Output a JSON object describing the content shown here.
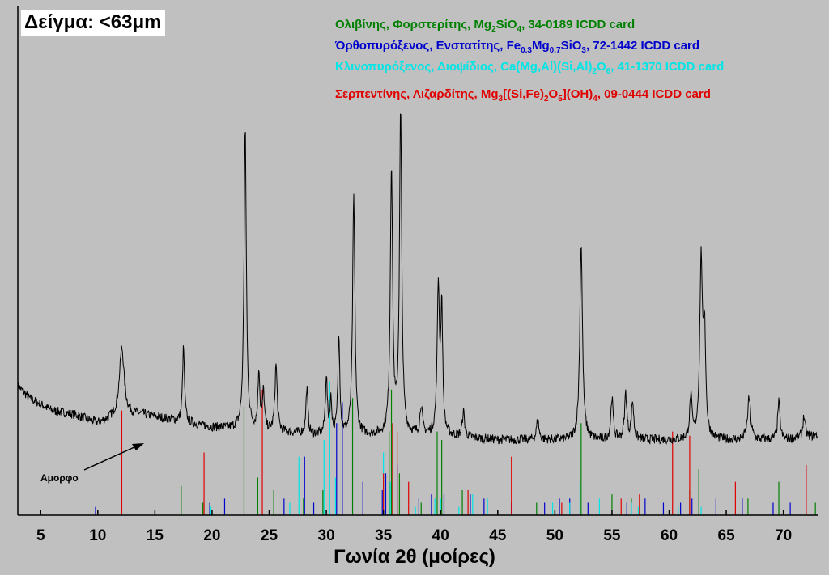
{
  "sample_label": "Δείγμα: <63μm",
  "legend": [
    {
      "color": "#008000",
      "name": "Ολιβίνης, Φορστερίτης, ",
      "formula": [
        "Mg",
        "2",
        "SiO",
        "4"
      ],
      "card": ", 34-0189 ICDD card"
    },
    {
      "color": "#0000cc",
      "name": "Όρθοπυρόξενος, Ενστατίτης, ",
      "formula": [
        "Fe",
        "0.3",
        "Mg",
        "0.7",
        "SiO",
        "3"
      ],
      "card": ", 72-1442 ICDD card"
    },
    {
      "color": "#00e5e5",
      "name": "Κλινοπυρόξενος, Διοψίδιος, ",
      "formula": [
        "Ca(Mg,Al)(Si,Al)",
        "2",
        "O",
        "6"
      ],
      "card": ", 41-1370 ICDD card"
    },
    {
      "color": "#e00000",
      "name": "Σερπεντίνης, Λιζαρδίτης, ",
      "formula": [
        "Mg",
        "3",
        "[(Si,Fe)",
        "2",
        "O",
        "5",
        "](OH)",
        "4"
      ],
      "card": ", 09-0444 ICDD card"
    }
  ],
  "annotation": "Αμορφο",
  "chart_data": {
    "type": "line",
    "xlabel": "Γωνία 2θ (μοίρες)",
    "ylabel": "",
    "xlim": [
      3,
      73
    ],
    "ylim": [
      0,
      100
    ],
    "x_ticks": [
      5,
      10,
      15,
      20,
      25,
      30,
      35,
      40,
      45,
      50,
      55,
      60,
      65,
      70
    ],
    "background": [
      [
        3,
        31
      ],
      [
        4,
        28
      ],
      [
        6,
        25
      ],
      [
        8,
        24
      ],
      [
        10,
        22
      ],
      [
        11,
        23
      ],
      [
        12,
        24
      ],
      [
        14,
        24
      ],
      [
        16,
        23
      ],
      [
        18,
        22
      ],
      [
        20,
        21
      ],
      [
        25,
        20
      ],
      [
        30,
        19
      ],
      [
        35,
        19
      ],
      [
        40,
        19
      ],
      [
        45,
        18
      ],
      [
        50,
        18
      ],
      [
        55,
        18
      ],
      [
        60,
        18
      ],
      [
        65,
        18
      ],
      [
        70,
        18
      ],
      [
        73,
        19
      ]
    ],
    "peaks": [
      {
        "x": 12.1,
        "h": 16,
        "w": 0.25
      },
      {
        "x": 17.5,
        "h": 18,
        "w": 0.1
      },
      {
        "x": 22.9,
        "h": 72,
        "w": 0.12
      },
      {
        "x": 24.1,
        "h": 14,
        "w": 0.1
      },
      {
        "x": 24.5,
        "h": 9,
        "w": 0.1
      },
      {
        "x": 25.6,
        "h": 16,
        "w": 0.12
      },
      {
        "x": 28.3,
        "h": 11,
        "w": 0.1
      },
      {
        "x": 30.0,
        "h": 14,
        "w": 0.1
      },
      {
        "x": 30.4,
        "h": 8,
        "w": 0.1
      },
      {
        "x": 31.1,
        "h": 24,
        "w": 0.1
      },
      {
        "x": 32.4,
        "h": 57,
        "w": 0.12
      },
      {
        "x": 35.7,
        "h": 64,
        "w": 0.12
      },
      {
        "x": 36.5,
        "h": 77,
        "w": 0.12
      },
      {
        "x": 38.3,
        "h": 7,
        "w": 0.12
      },
      {
        "x": 39.8,
        "h": 35,
        "w": 0.12
      },
      {
        "x": 40.1,
        "h": 29,
        "w": 0.1
      },
      {
        "x": 42.0,
        "h": 6,
        "w": 0.12
      },
      {
        "x": 48.5,
        "h": 5,
        "w": 0.12
      },
      {
        "x": 52.3,
        "h": 47,
        "w": 0.14
      },
      {
        "x": 55.0,
        "h": 10,
        "w": 0.12
      },
      {
        "x": 56.2,
        "h": 11,
        "w": 0.12
      },
      {
        "x": 56.8,
        "h": 9,
        "w": 0.12
      },
      {
        "x": 61.9,
        "h": 10,
        "w": 0.12
      },
      {
        "x": 62.8,
        "h": 42,
        "w": 0.14
      },
      {
        "x": 63.1,
        "h": 24,
        "w": 0.12
      },
      {
        "x": 67.0,
        "h": 10,
        "w": 0.16
      },
      {
        "x": 69.6,
        "h": 9,
        "w": 0.12
      },
      {
        "x": 71.8,
        "h": 5,
        "w": 0.12
      }
    ],
    "series": [
      {
        "name": "Ολιβίνης, Φορστερίτης",
        "color": "#008000",
        "sticks": [
          [
            17.3,
            7
          ],
          [
            19.2,
            3
          ],
          [
            22.8,
            26
          ],
          [
            24.0,
            9
          ],
          [
            25.4,
            6
          ],
          [
            28.0,
            4
          ],
          [
            29.7,
            6
          ],
          [
            32.3,
            28
          ],
          [
            35.5,
            20
          ],
          [
            35.7,
            30
          ],
          [
            36.4,
            10
          ],
          [
            38.3,
            3
          ],
          [
            39.7,
            20
          ],
          [
            40.1,
            18
          ],
          [
            41.9,
            6
          ],
          [
            48.4,
            3
          ],
          [
            52.3,
            22
          ],
          [
            55.0,
            5
          ],
          [
            56.7,
            4
          ],
          [
            61.8,
            6
          ],
          [
            62.6,
            11
          ],
          [
            66.9,
            4
          ],
          [
            69.6,
            8
          ],
          [
            72.8,
            3
          ]
        ]
      },
      {
        "name": "Ενστατίτης",
        "color": "#0000cc",
        "sticks": [
          [
            9.8,
            2
          ],
          [
            19.8,
            3
          ],
          [
            21.1,
            4
          ],
          [
            26.3,
            4
          ],
          [
            28.1,
            14
          ],
          [
            28.9,
            3
          ],
          [
            30.9,
            22
          ],
          [
            31.4,
            27
          ],
          [
            33.2,
            8
          ],
          [
            34.9,
            6
          ],
          [
            35.2,
            10
          ],
          [
            36.2,
            12
          ],
          [
            38.1,
            4
          ],
          [
            39.2,
            5
          ],
          [
            40.3,
            5
          ],
          [
            42.6,
            5
          ],
          [
            43.8,
            4
          ],
          [
            46.2,
            3
          ],
          [
            49.1,
            3
          ],
          [
            50.4,
            4
          ],
          [
            51.3,
            4
          ],
          [
            52.9,
            3
          ],
          [
            56.3,
            3
          ],
          [
            57.9,
            4
          ],
          [
            59.5,
            3
          ],
          [
            61.0,
            3
          ],
          [
            62.0,
            4
          ],
          [
            64.1,
            4
          ],
          [
            66.4,
            4
          ],
          [
            69.1,
            3
          ],
          [
            70.6,
            3
          ]
        ]
      },
      {
        "name": "Διοψίδιος",
        "color": "#00e5e5",
        "sticks": [
          [
            19.9,
            2
          ],
          [
            26.8,
            3
          ],
          [
            27.6,
            14
          ],
          [
            29.8,
            18
          ],
          [
            30.3,
            32
          ],
          [
            30.8,
            9
          ],
          [
            35.0,
            15
          ],
          [
            35.6,
            8
          ],
          [
            37.8,
            2
          ],
          [
            39.5,
            4
          ],
          [
            40.0,
            4
          ],
          [
            41.6,
            2
          ],
          [
            42.8,
            5
          ],
          [
            44.1,
            4
          ],
          [
            49.8,
            3
          ],
          [
            51.3,
            3
          ],
          [
            52.2,
            8
          ],
          [
            53.9,
            4
          ],
          [
            56.7,
            3
          ],
          [
            57.3,
            2
          ],
          [
            60.8,
            2
          ],
          [
            62.8,
            2
          ]
        ]
      },
      {
        "name": "Λιζαρδίτης",
        "color": "#e00000",
        "sticks": [
          [
            12.1,
            25
          ],
          [
            19.3,
            15
          ],
          [
            24.4,
            30
          ],
          [
            35.0,
            10
          ],
          [
            35.8,
            22
          ],
          [
            36.2,
            20
          ],
          [
            37.2,
            8
          ],
          [
            42.4,
            6
          ],
          [
            46.2,
            14
          ],
          [
            50.6,
            3
          ],
          [
            55.8,
            4
          ],
          [
            57.4,
            5
          ],
          [
            60.3,
            20
          ],
          [
            61.8,
            19
          ],
          [
            65.8,
            8
          ],
          [
            72.0,
            12
          ]
        ]
      }
    ]
  }
}
